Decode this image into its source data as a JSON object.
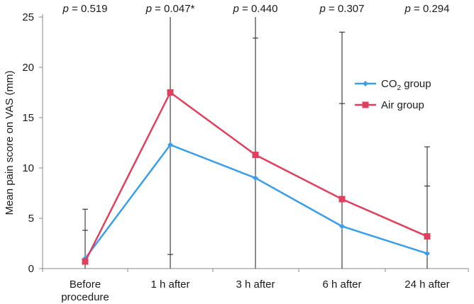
{
  "chart_data": {
    "type": "line",
    "categories": [
      [
        "Before",
        "procedure"
      ],
      [
        "1 h after"
      ],
      [
        "3 h after"
      ],
      [
        "6 h after"
      ],
      [
        "24 h after"
      ]
    ],
    "ylabel": "Mean pain score on VAS (mm)",
    "ylim": [
      0,
      25
    ],
    "yticks": [
      0,
      5,
      10,
      15,
      20,
      25
    ],
    "grid": false,
    "legend_position": "right",
    "p_values": [
      {
        "prefix": "p",
        "value": " = 0.519"
      },
      {
        "prefix": "p",
        "value": " = 0.047*"
      },
      {
        "prefix": "p",
        "value": " = 0.440"
      },
      {
        "prefix": "p",
        "value": " = 0.307"
      },
      {
        "prefix": "p",
        "value": " = 0.294"
      }
    ],
    "series": [
      {
        "name": "CO₂ group",
        "legend_main": "CO",
        "legend_sub": "2",
        "legend_tail": " group",
        "color": "#3a9ee8",
        "marker": "diamond",
        "values": [
          1.0,
          12.3,
          9.0,
          4.2,
          1.5
        ],
        "error_upper": [
          3.8,
          25.0,
          22.9,
          16.4,
          8.2
        ],
        "error_lower": [
          0,
          1.4,
          0,
          0,
          0
        ]
      },
      {
        "name": "Air group",
        "legend_main": "Air group",
        "legend_sub": "",
        "legend_tail": "",
        "color": "#e0405e",
        "marker": "square",
        "values": [
          0.7,
          17.5,
          11.3,
          6.9,
          3.2
        ],
        "error_upper": [
          5.9,
          25.0,
          25.0,
          23.5,
          12.1
        ],
        "error_lower": [
          0,
          0,
          0,
          0,
          0
        ]
      }
    ]
  }
}
